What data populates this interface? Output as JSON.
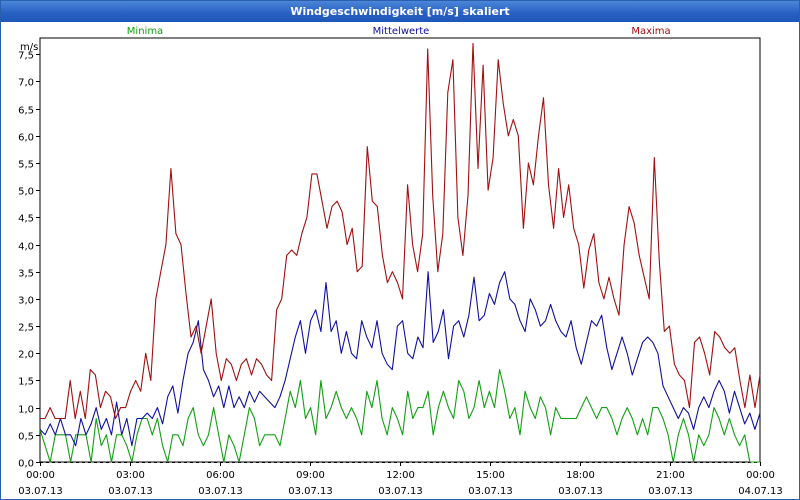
{
  "window": {
    "title": "Windgeschwindigkeit [m/s] skaliert"
  },
  "colors": {
    "minima": "#10a010",
    "mittelwerte": "#1010a0",
    "maxima": "#a01010"
  },
  "chart_data": {
    "type": "line",
    "title": "Windgeschwindigkeit [m/s] skaliert",
    "ylabel": "m/s",
    "ylim": [
      0,
      7.8
    ],
    "xlim": [
      0,
      24
    ],
    "yticks": [
      "0,0",
      "0,5",
      "1,0",
      "1,5",
      "2,0",
      "2,5",
      "3,0",
      "3,5",
      "4,0",
      "4,5",
      "5,0",
      "5,5",
      "6,0",
      "6,5",
      "7,0",
      "7,5"
    ],
    "xticks": [
      {
        "time": "00:00",
        "date": "03.07.13"
      },
      {
        "time": "03:00",
        "date": "03.07.13"
      },
      {
        "time": "06:00",
        "date": "03.07.13"
      },
      {
        "time": "09:00",
        "date": "03.07.13"
      },
      {
        "time": "12:00",
        "date": "03.07.13"
      },
      {
        "time": "15:00",
        "date": "03.07.13"
      },
      {
        "time": "18:00",
        "date": "03.07.13"
      },
      {
        "time": "21:00",
        "date": "03.07.13"
      },
      {
        "time": "00:00",
        "date": "04.07.13"
      }
    ],
    "grid": true,
    "legend_position": "top",
    "series": [
      {
        "name": "Minima",
        "values": [
          0.6,
          0.3,
          0.0,
          0.5,
          0.5,
          0.5,
          0.0,
          0.5,
          0.5,
          0.5,
          0.0,
          0.8,
          0.3,
          0.5,
          0.0,
          0.5,
          0.5,
          0.3,
          0.0,
          0.5,
          0.8,
          0.8,
          0.5,
          0.8,
          0.3,
          0.0,
          0.5,
          0.5,
          0.3,
          0.8,
          1.0,
          0.5,
          0.3,
          0.5,
          1.0,
          0.5,
          0.0,
          0.5,
          0.3,
          0.0,
          0.5,
          1.0,
          0.8,
          0.3,
          0.5,
          0.5,
          0.5,
          0.3,
          0.8,
          1.3,
          1.0,
          1.5,
          0.8,
          1.0,
          0.5,
          1.5,
          0.8,
          1.0,
          1.3,
          1.0,
          0.8,
          1.0,
          0.8,
          0.5,
          1.3,
          1.0,
          1.5,
          0.8,
          0.5,
          1.0,
          0.8,
          0.5,
          1.3,
          0.8,
          1.0,
          1.0,
          1.3,
          0.5,
          1.0,
          1.3,
          1.0,
          0.8,
          1.5,
          1.3,
          0.8,
          1.0,
          1.5,
          1.0,
          1.3,
          1.0,
          1.7,
          1.3,
          0.8,
          1.0,
          0.5,
          1.3,
          1.0,
          0.8,
          1.2,
          1.0,
          0.5,
          1.0,
          0.8,
          0.8,
          0.8,
          0.8,
          1.0,
          1.2,
          1.0,
          0.8,
          1.0,
          1.0,
          0.8,
          0.5,
          0.8,
          1.0,
          0.8,
          0.5,
          0.8,
          0.5,
          1.0,
          1.0,
          0.8,
          0.5,
          0.0,
          0.5,
          0.8,
          0.5,
          0.0,
          0.5,
          0.3,
          0.5,
          1.0,
          0.8,
          0.5,
          0.8,
          0.5,
          0.3,
          0.5,
          0.0,
          0.0,
          0.0
        ]
      },
      {
        "name": "Mittelwerte",
        "values": [
          0.6,
          0.5,
          0.7,
          0.5,
          0.8,
          0.5,
          0.5,
          0.3,
          0.8,
          0.5,
          0.7,
          1.0,
          0.6,
          0.8,
          0.5,
          1.1,
          0.5,
          0.8,
          0.3,
          0.8,
          0.8,
          0.9,
          0.8,
          1.0,
          0.7,
          1.2,
          1.4,
          0.9,
          1.5,
          2.0,
          2.2,
          2.6,
          1.7,
          1.5,
          1.2,
          1.4,
          1.0,
          1.4,
          1.0,
          1.2,
          1.0,
          1.3,
          1.1,
          1.3,
          1.2,
          1.1,
          1.0,
          1.2,
          1.5,
          1.9,
          2.3,
          2.6,
          2.0,
          2.6,
          2.8,
          2.4,
          3.3,
          2.4,
          2.6,
          2.0,
          2.4,
          2.0,
          1.9,
          2.6,
          2.3,
          2.1,
          2.6,
          2.0,
          1.8,
          1.7,
          2.5,
          2.6,
          2.0,
          1.9,
          2.3,
          2.1,
          3.5,
          2.2,
          2.4,
          2.8,
          1.9,
          2.5,
          2.6,
          2.3,
          2.7,
          3.4,
          2.6,
          2.7,
          3.1,
          2.9,
          3.3,
          3.5,
          3.0,
          2.9,
          2.6,
          2.4,
          3.0,
          2.8,
          2.5,
          2.6,
          2.9,
          2.6,
          2.4,
          2.3,
          2.6,
          2.1,
          1.8,
          2.2,
          2.6,
          2.5,
          2.7,
          2.1,
          1.7,
          2.0,
          2.3,
          2.0,
          1.6,
          1.9,
          2.2,
          2.3,
          2.2,
          2.0,
          1.4,
          1.2,
          1.0,
          0.8,
          1.0,
          0.9,
          0.6,
          1.0,
          1.2,
          1.0,
          1.3,
          1.5,
          1.3,
          0.9,
          1.3,
          1.0,
          0.7,
          0.9,
          0.6,
          0.9
        ]
      },
      {
        "name": "Maxima",
        "values": [
          0.8,
          0.8,
          1.0,
          0.8,
          0.8,
          0.8,
          1.5,
          0.8,
          1.3,
          0.8,
          1.7,
          1.6,
          1.0,
          1.3,
          1.2,
          0.8,
          1.0,
          1.0,
          1.3,
          1.5,
          1.3,
          2.0,
          1.5,
          3.0,
          3.5,
          4.0,
          5.4,
          4.2,
          4.0,
          3.1,
          2.3,
          2.5,
          2.0,
          2.5,
          3.0,
          2.0,
          1.5,
          1.9,
          1.8,
          1.5,
          1.8,
          1.9,
          1.6,
          1.9,
          1.8,
          1.6,
          1.5,
          2.8,
          3.0,
          3.8,
          3.9,
          3.8,
          4.2,
          4.5,
          5.3,
          5.3,
          4.8,
          4.3,
          4.7,
          4.8,
          4.6,
          4.0,
          4.3,
          3.5,
          3.6,
          5.8,
          4.8,
          4.7,
          3.8,
          3.3,
          3.5,
          3.3,
          3.0,
          5.1,
          4.0,
          3.5,
          4.2,
          7.6,
          4.9,
          3.5,
          4.2,
          6.8,
          7.4,
          4.5,
          3.8,
          4.9,
          7.7,
          5.4,
          7.3,
          5.0,
          5.6,
          7.4,
          6.6,
          6.0,
          6.3,
          6.0,
          4.3,
          5.5,
          5.1,
          6.0,
          6.7,
          5.1,
          4.3,
          5.4,
          4.5,
          5.1,
          4.3,
          4.0,
          3.2,
          3.9,
          4.2,
          3.3,
          3.0,
          3.4,
          3.0,
          2.7,
          4.0,
          4.7,
          4.4,
          3.8,
          3.4,
          3.0,
          5.6,
          3.7,
          2.4,
          2.5,
          1.8,
          1.6,
          1.5,
          1.0,
          2.2,
          2.3,
          2.0,
          1.6,
          2.4,
          2.3,
          2.1,
          2.0,
          2.1,
          1.5,
          1.0,
          1.6,
          1.0,
          1.6
        ]
      }
    ]
  }
}
